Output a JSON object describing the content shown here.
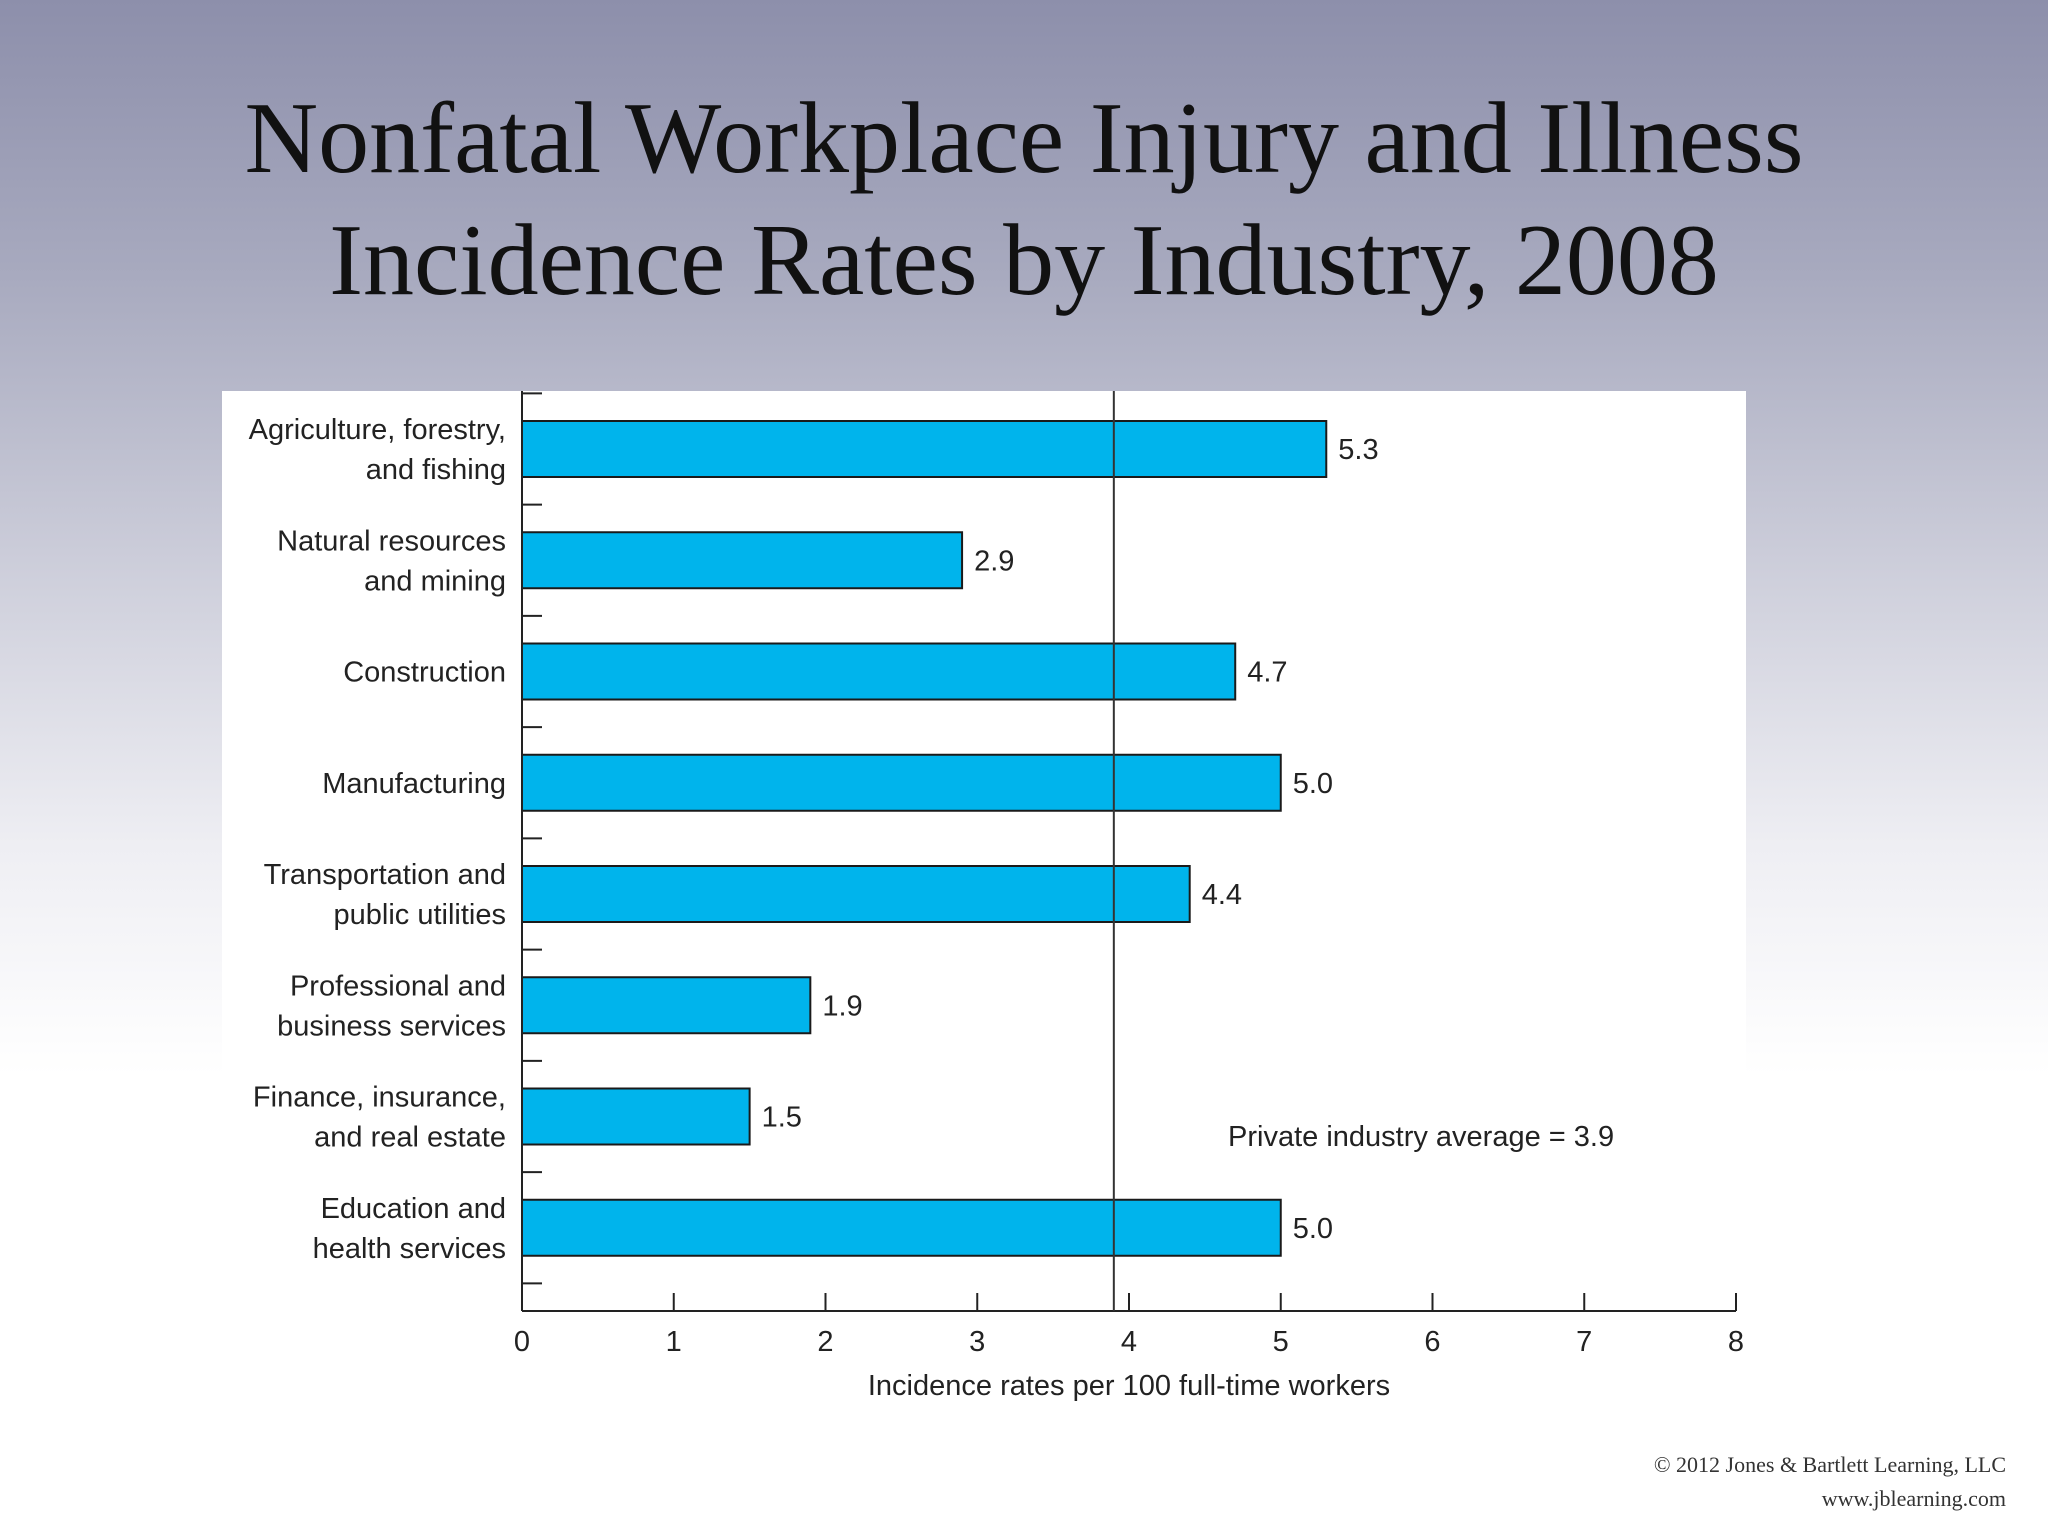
{
  "slide": {
    "title_line1": "Nonfatal Workplace Injury and Illness",
    "title_line2": "Incidence Rates by Industry, 2008",
    "copyright_line1": "© 2012 Jones & Bartlett Learning, LLC",
    "copyright_line2": "www.jblearning.com"
  },
  "chart_data": {
    "type": "bar",
    "orientation": "horizontal",
    "title": "Nonfatal Workplace Injury and Illness Incidence Rates by Industry, 2008",
    "categories": [
      [
        "Agriculture, forestry,",
        "and fishing"
      ],
      [
        "Natural resources",
        "and mining"
      ],
      [
        "Construction"
      ],
      [
        "Manufacturing"
      ],
      [
        "Transportation and",
        "public utilities"
      ],
      [
        "Professional and",
        "business services"
      ],
      [
        "Finance, insurance,",
        "and real estate"
      ],
      [
        "Education and",
        "health services"
      ]
    ],
    "values": [
      5.3,
      2.9,
      4.7,
      5.0,
      4.4,
      1.9,
      1.5,
      5.0
    ],
    "value_labels": [
      "5.3",
      "2.9",
      "4.7",
      "5.0",
      "4.4",
      "1.9",
      "1.5",
      "5.0"
    ],
    "xlabel": "Incidence rates per 100 full-time workers",
    "ylabel": "",
    "xlim": [
      0,
      8
    ],
    "xticks": [
      "0",
      "1",
      "2",
      "3",
      "4",
      "5",
      "6",
      "7",
      "8"
    ],
    "grid": false,
    "bar_color": "#00b4ec",
    "reference_line": {
      "value": 3.9,
      "label": "Private industry average = 3.9"
    }
  }
}
